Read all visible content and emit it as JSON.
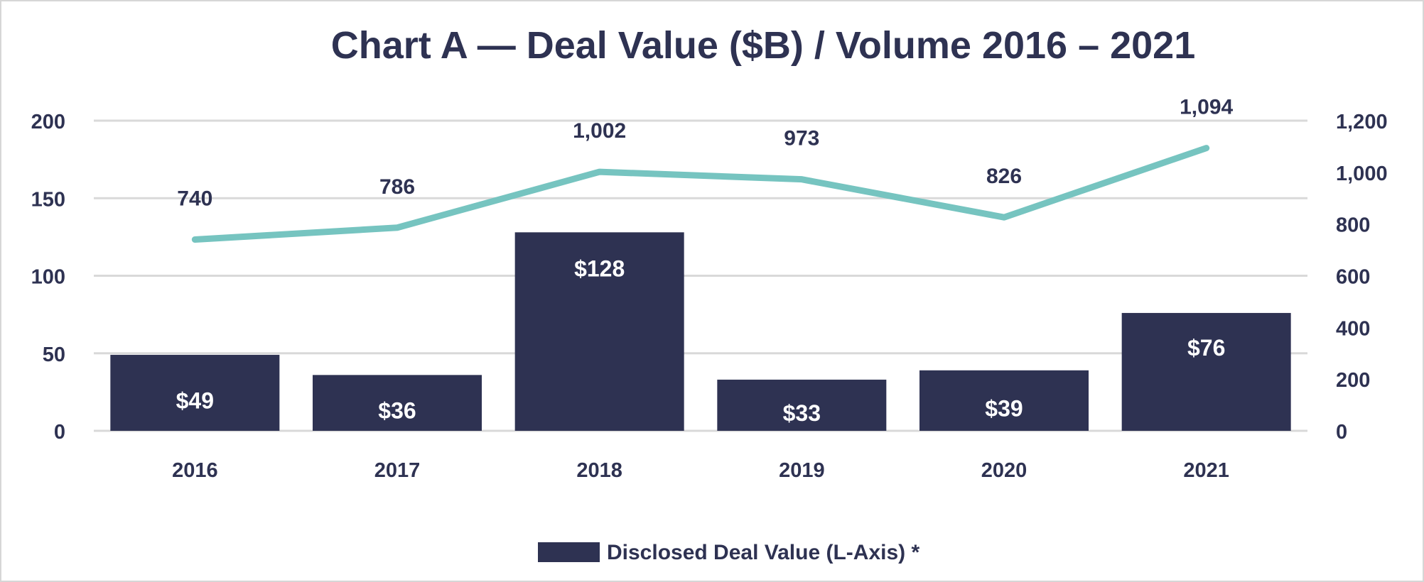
{
  "chart_data": {
    "type": "bar",
    "title": "Chart A — Deal Value ($B) / Volume 2016 – 2021",
    "categories": [
      "2016",
      "2017",
      "2018",
      "2019",
      "2020",
      "2021"
    ],
    "series": [
      {
        "name": "Disclosed Deal Value (L-Axis) *",
        "type": "bar",
        "axis": "left",
        "values": [
          49,
          36,
          128,
          33,
          39,
          76
        ],
        "labels": [
          "$49",
          "$36",
          "$128",
          "$33",
          "$39",
          "$76"
        ],
        "color": "#2e3252"
      },
      {
        "type": "line",
        "axis": "right",
        "values": [
          740,
          786,
          1002,
          973,
          826,
          1094
        ],
        "labels": [
          "740",
          "786",
          "1,002",
          "973",
          "826",
          "1,094"
        ],
        "color": "#76c4c0"
      }
    ],
    "left_axis": {
      "ylim": [
        0,
        200
      ],
      "ticks": [
        "0",
        "50",
        "100",
        "150",
        "200"
      ]
    },
    "right_axis": {
      "ylim": [
        0,
        1200
      ],
      "ticks": [
        "0",
        "200",
        "400",
        "600",
        "800",
        "1,000",
        "1,200"
      ]
    },
    "grid": true,
    "legend": {
      "placement": "bottom",
      "entries": [
        "Disclosed Deal Value (L-Axis) *"
      ]
    },
    "colors": {
      "text": "#2e3252",
      "grid": "#d9d9d9"
    }
  }
}
